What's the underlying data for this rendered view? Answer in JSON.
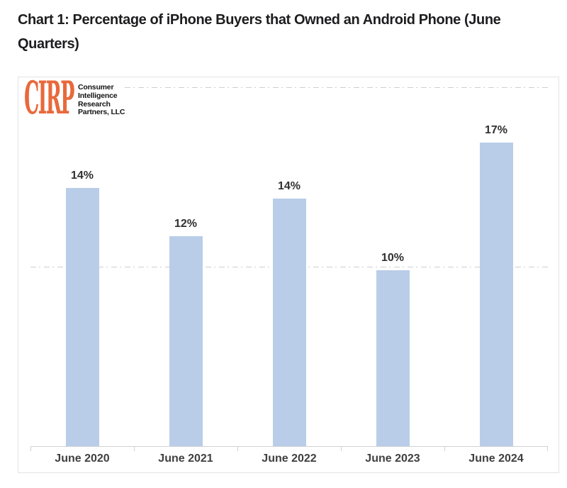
{
  "page": {
    "background": "#ffffff"
  },
  "header": {
    "title": "Chart 1: Percentage of iPhone Buyers that Owned an Android Phone (June Quarters)",
    "title_color": "#1d1d1f"
  },
  "logo": {
    "acronym": "CIRP",
    "lines": [
      "Consumer",
      "Intelligence",
      "Research",
      "Partners, LLC"
    ],
    "accent_color": "#e8693c",
    "text_color": "#141414"
  },
  "chart_data": {
    "type": "bar",
    "title": "Percentage of iPhone Buyers that Owned an Android Phone (June Quarters)",
    "categories": [
      "June 2020",
      "June 2021",
      "June 2022",
      "June 2023",
      "June 2024"
    ],
    "values": [
      14,
      12,
      14,
      10,
      17
    ],
    "value_labels": [
      "14%",
      "12%",
      "14%",
      "10%",
      "17%"
    ],
    "values_precise_estimate": [
      14.4,
      11.7,
      13.8,
      9.8,
      16.9
    ],
    "xlabel": "",
    "ylabel": "",
    "ylim": [
      0,
      20.5
    ],
    "gridlines_pct": [
      10,
      20
    ],
    "gridline_style": "dash-dot",
    "grid": "horizontal-only",
    "legend": "none",
    "bar_color": "#b9cde8",
    "gridline_color": "#c9c9c9",
    "axis_color": "#d2d2d2",
    "category_label_color": "#3f3f3f",
    "value_label_color": "#303030"
  }
}
